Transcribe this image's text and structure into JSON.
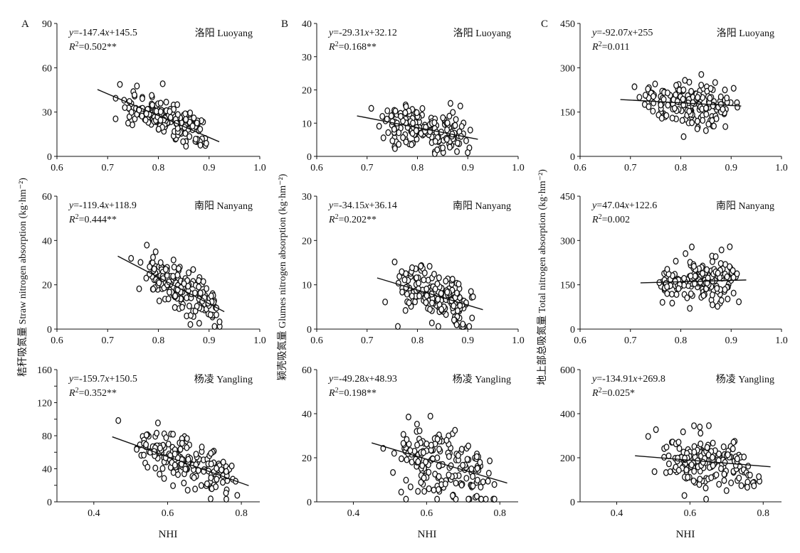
{
  "panel_letters": [
    "A",
    "B",
    "C"
  ],
  "x_axis_label": "NHI",
  "y_axis_labels": [
    "秸秆吸氮量 Straw nitrogen absorption (kg·hm⁻²)",
    "颖壳吸氮量 Glumes nitrogen absorption (kg·hm⁻²)",
    "地上部总吸氮量 Total nitrogen absorption (kg·hm⁻²)"
  ],
  "chart_data": [
    {
      "type": "scatter",
      "panel": "A",
      "site": "洛阳 Luoyang",
      "equation": "y=-147.4x+145.5",
      "r2": "R²=0.502**",
      "xlim": [
        0.6,
        1.0
      ],
      "xticks": [
        "0.6",
        "0.7",
        "0.8",
        "0.9",
        "1.0"
      ],
      "ylim": [
        0,
        90
      ],
      "yticks": [
        "0",
        "30",
        "60",
        "90"
      ],
      "fit": {
        "slope": -147.4,
        "intercept": 145.5,
        "x_range": [
          0.68,
          0.92
        ]
      }
    },
    {
      "type": "scatter",
      "panel": "B",
      "site": "洛阳 Luoyang",
      "equation": "y=-29.31x+32.12",
      "r2": "R²=0.168**",
      "xlim": [
        0.6,
        1.0
      ],
      "xticks": [
        "0.6",
        "0.7",
        "0.8",
        "0.9",
        "1.0"
      ],
      "ylim": [
        0,
        40
      ],
      "yticks": [
        "0",
        "10",
        "20",
        "30",
        "40"
      ],
      "fit": {
        "slope": -29.31,
        "intercept": 32.12,
        "x_range": [
          0.68,
          0.92
        ]
      }
    },
    {
      "type": "scatter",
      "panel": "C",
      "site": "洛阳 Luoyang",
      "equation": "y=-92.07x+255",
      "r2": "R²=0.011",
      "xlim": [
        0.6,
        1.0
      ],
      "xticks": [
        "0.6",
        "0.7",
        "0.8",
        "0.9",
        "1.0"
      ],
      "ylim": [
        0,
        450
      ],
      "yticks": [
        "0",
        "150",
        "300",
        "450"
      ],
      "fit": {
        "slope": -92.07,
        "intercept": 255,
        "x_range": [
          0.68,
          0.92
        ]
      }
    },
    {
      "type": "scatter",
      "panel": "A",
      "site": "南阳 Nanyang",
      "equation": "y=-119.4x+118.9",
      "r2": "R²=0.444**",
      "xlim": [
        0.6,
        1.0
      ],
      "xticks": [
        "0.6",
        "0.7",
        "0.8",
        "0.9",
        "1.0"
      ],
      "ylim": [
        0,
        60
      ],
      "yticks": [
        "0",
        "20",
        "40",
        "60"
      ],
      "fit": {
        "slope": -119.4,
        "intercept": 118.9,
        "x_range": [
          0.72,
          0.93
        ]
      }
    },
    {
      "type": "scatter",
      "panel": "B",
      "site": "南阳 Nanyang",
      "equation": "y=-34.15x+36.14",
      "r2": "R²=0.202**",
      "xlim": [
        0.6,
        1.0
      ],
      "xticks": [
        "0.6",
        "0.7",
        "0.8",
        "0.9",
        "1.0"
      ],
      "ylim": [
        0,
        30
      ],
      "yticks": [
        "0",
        "10",
        "20",
        "30"
      ],
      "fit": {
        "slope": -34.15,
        "intercept": 36.14,
        "x_range": [
          0.72,
          0.93
        ]
      }
    },
    {
      "type": "scatter",
      "panel": "C",
      "site": "南阳 Nanyang",
      "equation": "y=47.04x+122.6",
      "r2": "R²=0.002",
      "xlim": [
        0.6,
        1.0
      ],
      "xticks": [
        "0.6",
        "0.7",
        "0.8",
        "0.9",
        "1.0"
      ],
      "ylim": [
        0,
        450
      ],
      "yticks": [
        "0",
        "150",
        "300",
        "450"
      ],
      "fit": {
        "slope": 47.04,
        "intercept": 122.6,
        "x_range": [
          0.72,
          0.93
        ]
      }
    },
    {
      "type": "scatter",
      "panel": "A",
      "site": "杨凌 Yangling",
      "equation": "y=-159.7x+150.5",
      "r2": "R²=0.352**",
      "xlim": [
        0.3,
        0.85
      ],
      "xticks": [
        "0.4",
        "0.6",
        "0.8"
      ],
      "ylim": [
        0,
        160
      ],
      "yticks": [
        "0",
        "20",
        "40",
        "60",
        "80",
        "100",
        "120",
        "140",
        "160"
      ],
      "ytick_labels_shown": [
        "0",
        "40",
        "80",
        "120",
        "160"
      ],
      "fit": {
        "slope": -159.7,
        "intercept": 150.5,
        "x_range": [
          0.45,
          0.82
        ]
      }
    },
    {
      "type": "scatter",
      "panel": "B",
      "site": "杨凌 Yangling",
      "equation": "y=-49.28x+48.93",
      "r2": "R²=0.198**",
      "xlim": [
        0.3,
        0.85
      ],
      "xticks": [
        "0.4",
        "0.6",
        "0.8"
      ],
      "ylim": [
        0,
        60
      ],
      "yticks": [
        "0",
        "20",
        "40",
        "60"
      ],
      "fit": {
        "slope": -49.28,
        "intercept": 48.93,
        "x_range": [
          0.45,
          0.82
        ]
      }
    },
    {
      "type": "scatter",
      "panel": "C",
      "site": "杨凌 Yangling",
      "equation": "y=-134.91x+269.8",
      "r2": "R²=0.025*",
      "xlim": [
        0.3,
        0.85
      ],
      "xticks": [
        "0.4",
        "0.6",
        "0.8"
      ],
      "ylim": [
        0,
        600
      ],
      "yticks": [
        "0",
        "200",
        "400",
        "600"
      ],
      "fit": {
        "slope": -134.91,
        "intercept": 269.8,
        "x_range": [
          0.45,
          0.82
        ]
      }
    }
  ]
}
